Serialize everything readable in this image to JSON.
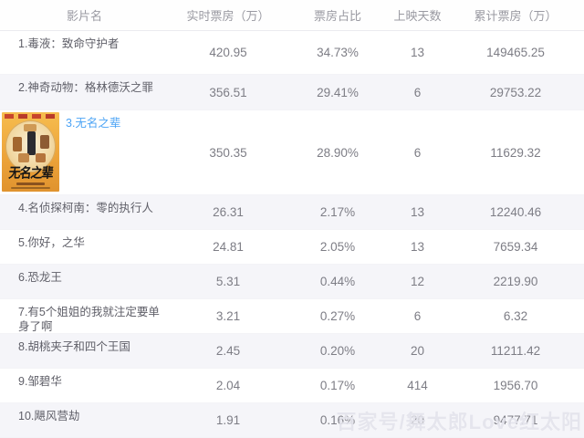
{
  "table": {
    "columns": [
      {
        "key": "name",
        "label": "影片名"
      },
      {
        "key": "realtime",
        "label": "实时票房（万）"
      },
      {
        "key": "share",
        "label": "票房占比"
      },
      {
        "key": "days",
        "label": "上映天数"
      },
      {
        "key": "total",
        "label": "累计票房（万）"
      }
    ],
    "rows": [
      {
        "name": "1.毒液：致命守护者",
        "realtime": "420.95",
        "share": "34.73%",
        "days": "13",
        "total": "149465.25"
      },
      {
        "name": "2.神奇动物：格林德沃之罪",
        "realtime": "356.51",
        "share": "29.41%",
        "days": "6",
        "total": "29753.22"
      },
      {
        "name": "3.无名之辈",
        "realtime": "350.35",
        "share": "28.90%",
        "days": "6",
        "total": "11629.32",
        "has_poster": true,
        "is_link": true
      },
      {
        "name": "4.名侦探柯南：零的执行人",
        "realtime": "26.31",
        "share": "2.17%",
        "days": "13",
        "total": "12240.46"
      },
      {
        "name": "5.你好，之华",
        "realtime": "24.81",
        "share": "2.05%",
        "days": "13",
        "total": "7659.34"
      },
      {
        "name": "6.恐龙王",
        "realtime": "5.31",
        "share": "0.44%",
        "days": "12",
        "total": "2219.90"
      },
      {
        "name": "7.有5个姐姐的我就注定要单身了啊",
        "realtime": "3.21",
        "share": "0.27%",
        "days": "6",
        "total": "6.32"
      },
      {
        "name": "8.胡桃夹子和四个王国",
        "realtime": "2.45",
        "share": "0.20%",
        "days": "20",
        "total": "11211.42"
      },
      {
        "name": "9.邹碧华",
        "realtime": "2.04",
        "share": "0.17%",
        "days": "414",
        "total": "1956.70"
      },
      {
        "name": "10.飓风营劫",
        "realtime": "1.91",
        "share": "0.16%",
        "days": "20",
        "total": "9477.71"
      }
    ]
  },
  "poster": {
    "movie": "无名之辈",
    "title": "无名之辈"
  },
  "watermark": {
    "text": "百家号/舞太郎Love红太阳"
  },
  "colors": {
    "link_blue": "#4aa3f5",
    "row_alt": "#f5f5f9",
    "header_text": "#9a9aa2",
    "name_text": "#5f5f68",
    "value_text": "#7d7d85",
    "poster_orange": "#eda43a"
  }
}
